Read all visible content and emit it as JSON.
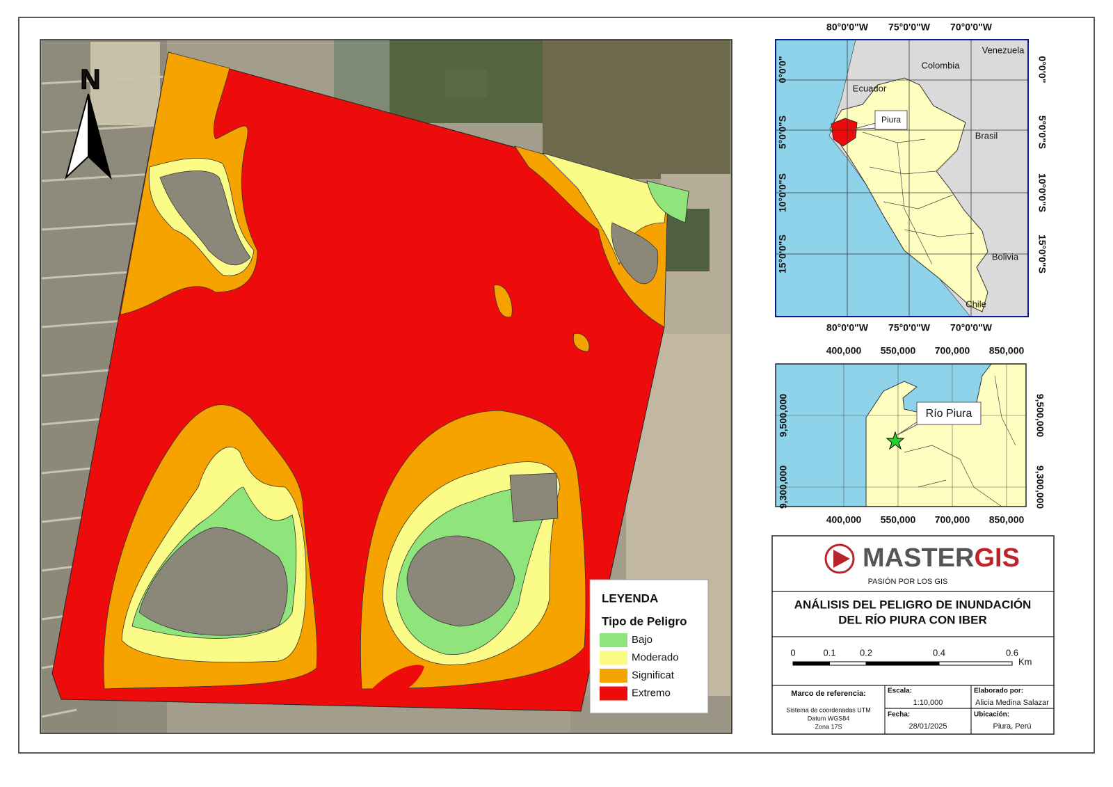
{
  "map": {
    "north": "N"
  },
  "legend": {
    "title": "LEYENDA",
    "subtitle": "Tipo de Peligro",
    "items": [
      {
        "label": "Bajo",
        "color": "#90e47c"
      },
      {
        "label": "Moderado",
        "color": "#fbfb88"
      },
      {
        "label": "Significat",
        "color": "#f6a300"
      },
      {
        "label": "Extremo",
        "color": "#ee0b0b"
      }
    ]
  },
  "inset_peru": {
    "lon_labels": [
      "80°0'0\"W",
      "75°0'0\"W",
      "70°0'0\"W"
    ],
    "lat_labels": [
      "0°0'0\"",
      "5°0'0\"S",
      "10°0'0\"S",
      "15°0'0\"S"
    ],
    "countries": [
      "Venezuela",
      "Colombia",
      "Ecuador",
      "Brasil",
      "Bolivia",
      "Chile"
    ],
    "region": "Piura"
  },
  "inset_utm": {
    "easting_labels": [
      "400,000",
      "550,000",
      "700,000",
      "850,000"
    ],
    "northing_labels": [
      "9,500,000",
      "9,300,000"
    ],
    "label": "Río Piura"
  },
  "title_block": {
    "logo_main": "MASTER",
    "logo_accent": "GIS",
    "slogan": "PASIÓN POR LOS GIS",
    "title": [
      "ANÁLISIS DEL PELIGRO DE INUNDACIÓN",
      "DEL RÍO PIURA CON IBER"
    ],
    "scale_ticks": [
      0,
      0.1,
      0.2,
      0.4,
      0.6
    ],
    "scale_unit": "Km",
    "reference_heading": "Marco de referencia:",
    "reference_lines": [
      "Sistema de coordenadas UTM",
      "Datum WGS84",
      "Zona 17S"
    ],
    "scale_heading": "Escala:",
    "scale": "1:10,000",
    "date_heading": "Fecha:",
    "date": "28/01/2025",
    "author_heading": "Elaborado por:",
    "author": "Alicia Medina Salazar",
    "location_heading": "Ubicación:",
    "location": "Piura, Perú"
  }
}
